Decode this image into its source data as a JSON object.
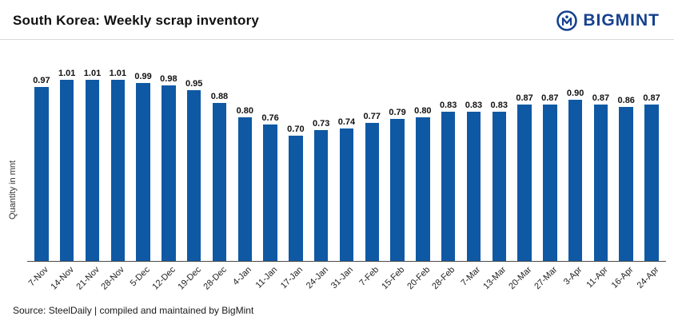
{
  "header": {
    "title": "South Korea: Weekly scrap inventory",
    "brand": "BIGMINT",
    "brand_color": "#16418e"
  },
  "chart_data": {
    "type": "bar",
    "title": "South Korea: Weekly scrap inventory",
    "xlabel": "",
    "ylabel": "Quantity in mnt",
    "ylim": [
      0,
      1.05
    ],
    "grid": false,
    "legend": false,
    "data_labels": true,
    "bar_color": "#0f59a4",
    "categories": [
      "7-Nov",
      "14-Nov",
      "21-Nov",
      "28-Nov",
      "5-Dec",
      "12-Dec",
      "19-Dec",
      "28-Dec",
      "4-Jan",
      "11-Jan",
      "17-Jan",
      "24-Jan",
      "31-Jan",
      "7-Feb",
      "15-Feb",
      "20-Feb",
      "28-Feb",
      "7-Mar",
      "13-Mar",
      "20-Mar",
      "27-Mar",
      "3-Apr",
      "11-Apr",
      "16-Apr",
      "24-Apr"
    ],
    "values": [
      0.97,
      1.01,
      1.01,
      1.01,
      0.99,
      0.98,
      0.95,
      0.88,
      0.8,
      0.76,
      0.7,
      0.73,
      0.74,
      0.77,
      0.79,
      0.8,
      0.83,
      0.83,
      0.83,
      0.87,
      0.87,
      0.9,
      0.87,
      0.86,
      0.87
    ]
  },
  "footer": {
    "source": "Source: SteelDaily | compiled and maintained by BigMint"
  }
}
